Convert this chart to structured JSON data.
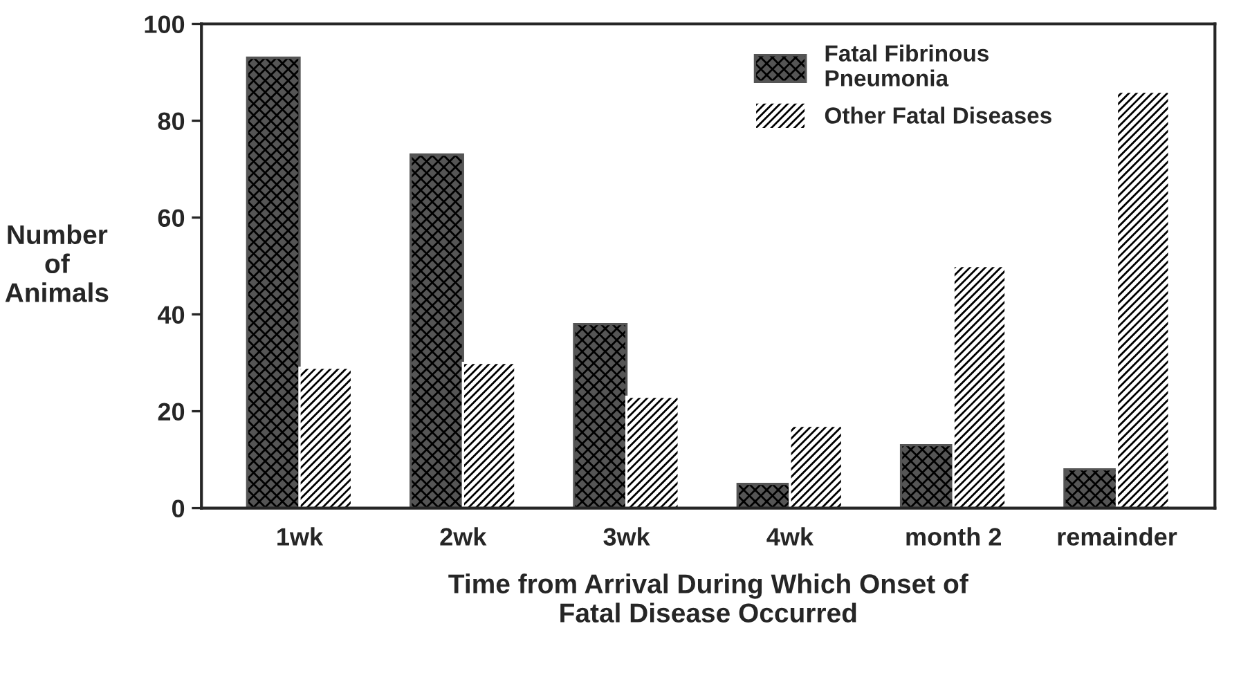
{
  "chart_data": {
    "type": "bar",
    "xlabel": "Time from Arrival During Which Onset of\nFatal Disease Occurred",
    "ylabel": "Number\nof\nAnimals",
    "categories": [
      "1wk",
      "2wk",
      "3wk",
      "4wk",
      "month 2",
      "remainder"
    ],
    "series": [
      {
        "name": "Fatal Fibrinous\nPneumonia",
        "color": "#555555",
        "values": [
          93,
          73,
          38,
          5,
          13,
          8
        ]
      },
      {
        "name": "Other Fatal Diseases",
        "color": "#ffffff",
        "values": [
          29,
          30,
          23,
          17,
          50,
          86
        ]
      }
    ],
    "ylim": [
      0,
      100
    ],
    "yticks": [
      0,
      20,
      40,
      60,
      80,
      100
    ],
    "grid": false,
    "legend": "top right"
  }
}
